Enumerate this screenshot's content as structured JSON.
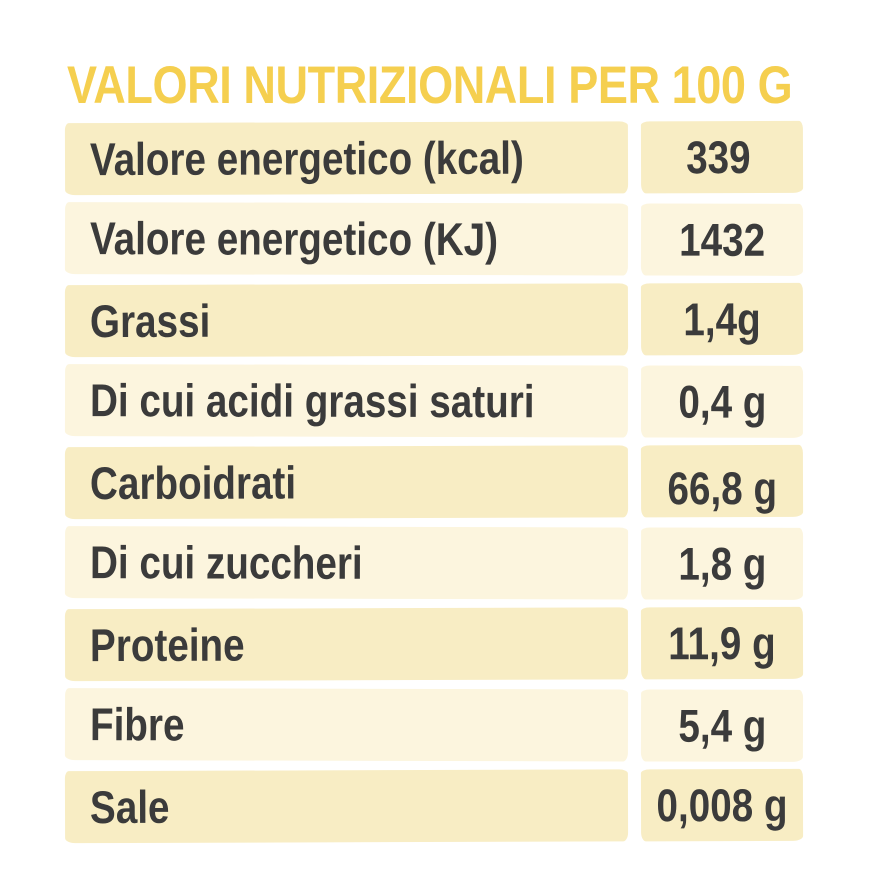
{
  "title": "VALORI NUTRIZIONALI PER 100 G",
  "table": {
    "rows": [
      {
        "label": "Valore energetico (kcal)",
        "value": "339"
      },
      {
        "label": "Valore energetico (KJ)",
        "value": "1432"
      },
      {
        "label": "Grassi",
        "value": "1,4g"
      },
      {
        "label": "Di cui acidi grassi saturi",
        "value": "0,4 g"
      },
      {
        "label": "Carboidrati",
        "value": "66,8 g"
      },
      {
        "label": "Di cui zuccheri",
        "value": "1,8 g"
      },
      {
        "label": "Proteine",
        "value": "11,9 g"
      },
      {
        "label": "Fibre",
        "value": "5,4 g"
      },
      {
        "label": "Sale",
        "value": "0,008 g"
      }
    ]
  },
  "colors": {
    "title_color": "#F5CF4F",
    "row_odd": "#F8EDC4",
    "row_even": "#FCF5DE",
    "text_color": "#3B3B3B",
    "background": "#FFFFFF"
  }
}
